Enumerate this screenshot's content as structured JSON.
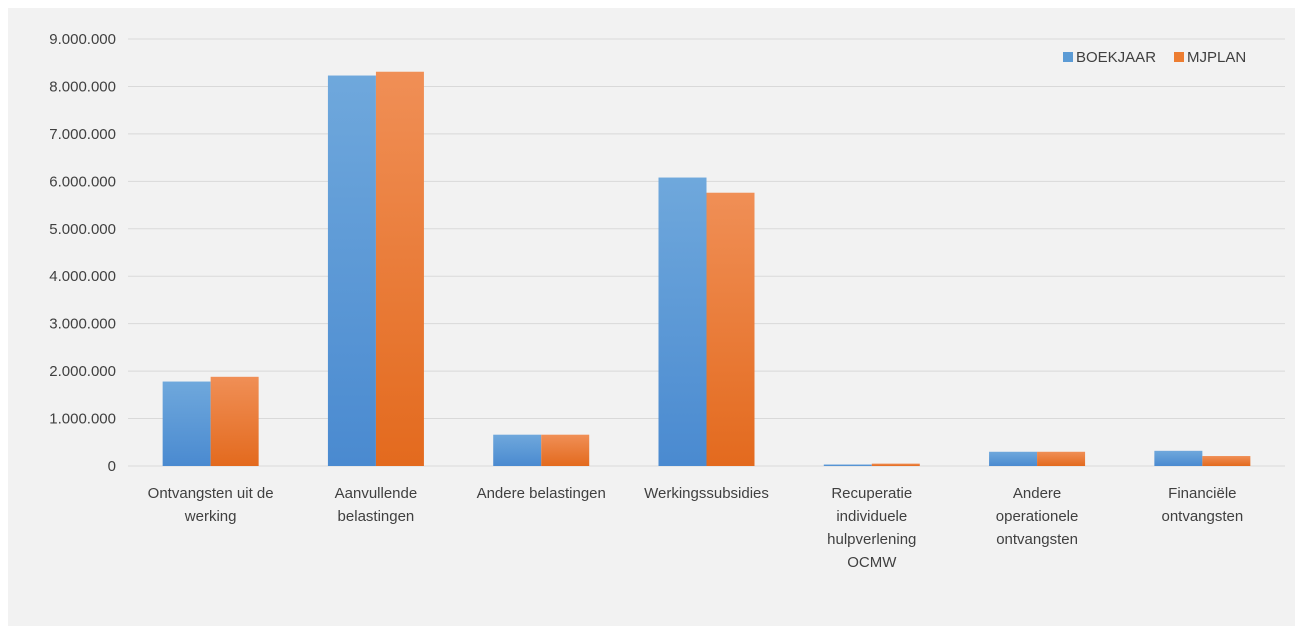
{
  "chart_data": {
    "type": "bar",
    "title": "",
    "xlabel": "",
    "ylabel": "",
    "ylim": [
      0,
      9000000
    ],
    "yticks": [
      0,
      1000000,
      2000000,
      3000000,
      4000000,
      5000000,
      6000000,
      7000000,
      8000000,
      9000000
    ],
    "ytick_labels": [
      "0",
      "1.000.000",
      "2.000.000",
      "3.000.000",
      "4.000.000",
      "5.000.000",
      "6.000.000",
      "7.000.000",
      "8.000.000",
      "9.000.000"
    ],
    "categories": [
      [
        "Ontvangsten uit de",
        "werking"
      ],
      [
        "Aanvullende",
        "belastingen"
      ],
      [
        "Andere belastingen"
      ],
      [
        "Werkingssubsidies"
      ],
      [
        "Recuperatie",
        "individuele",
        "hulpverlening",
        "OCMW"
      ],
      [
        "Andere",
        "operationele",
        "ontvangsten"
      ],
      [
        "Financiële",
        "ontvangsten"
      ]
    ],
    "series": [
      {
        "name": "BOEKJAAR",
        "color": "#5b9bd5",
        "values": [
          1780000,
          8230000,
          660000,
          6080000,
          20000,
          300000,
          320000
        ]
      },
      {
        "name": "MJPLAN",
        "color": "#ed7d31",
        "values": [
          1880000,
          8310000,
          660000,
          5760000,
          50000,
          300000,
          210000
        ]
      }
    ],
    "grid": true,
    "legend_position": "top-right"
  }
}
